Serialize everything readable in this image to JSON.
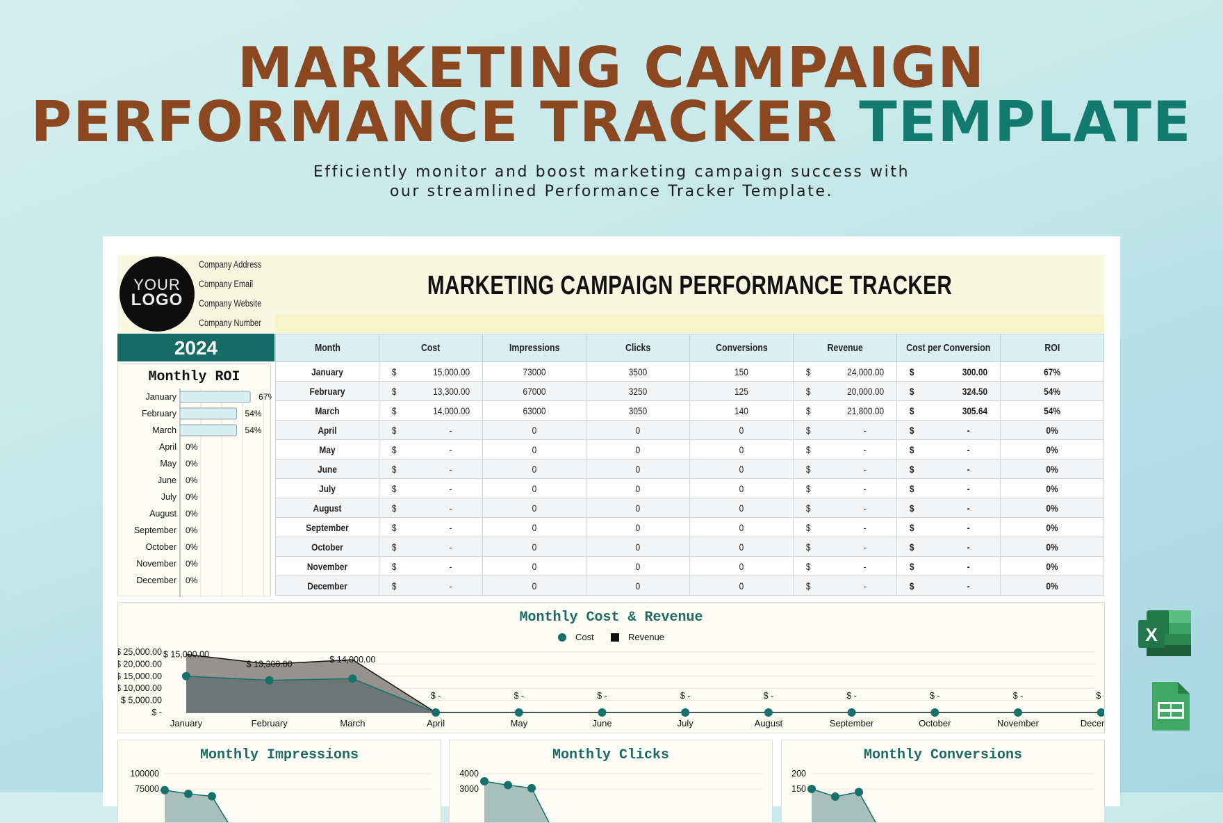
{
  "hero": {
    "title_line1": "MARKETING CAMPAIGN",
    "title_line2": "PERFORMANCE TRACKER",
    "title_accent": "TEMPLATE",
    "subtitle_line1": "Efficiently monitor and boost marketing campaign success with",
    "subtitle_line2": "our streamlined Performance Tracker Template."
  },
  "colors": {
    "title_brown": "#8a4720",
    "accent_teal": "#137a6e",
    "year_bar": "#176b65",
    "header_yellow": "#f8f8e2",
    "table_header": "#dbeef1"
  },
  "company": {
    "logo_line1": "YOUR",
    "logo_line2": "LOGO",
    "address": "Company Address",
    "email": "Company Email",
    "website": "Company Website",
    "number": "Company Number"
  },
  "sheet": {
    "title": "MARKETING CAMPAIGN PERFORMANCE TRACKER",
    "year": "2024"
  },
  "table": {
    "columns": [
      "Month",
      "Cost",
      "Impressions",
      "Clicks",
      "Conversions",
      "Revenue",
      "Cost per Conversion",
      "ROI"
    ],
    "currency": "$",
    "rows": [
      {
        "month": "January",
        "cost": "15,000.00",
        "impressions": "73000",
        "clicks": "3500",
        "conversions": "150",
        "revenue": "24,000.00",
        "cpc": "300.00",
        "roi": "67%"
      },
      {
        "month": "February",
        "cost": "13,300.00",
        "impressions": "67000",
        "clicks": "3250",
        "conversions": "125",
        "revenue": "20,000.00",
        "cpc": "324.50",
        "roi": "54%"
      },
      {
        "month": "March",
        "cost": "14,000.00",
        "impressions": "63000",
        "clicks": "3050",
        "conversions": "140",
        "revenue": "21,800.00",
        "cpc": "305.64",
        "roi": "54%"
      },
      {
        "month": "April",
        "cost": "-",
        "impressions": "0",
        "clicks": "0",
        "conversions": "0",
        "revenue": "-",
        "cpc": "-",
        "roi": "0%"
      },
      {
        "month": "May",
        "cost": "-",
        "impressions": "0",
        "clicks": "0",
        "conversions": "0",
        "revenue": "-",
        "cpc": "-",
        "roi": "0%"
      },
      {
        "month": "June",
        "cost": "-",
        "impressions": "0",
        "clicks": "0",
        "conversions": "0",
        "revenue": "-",
        "cpc": "-",
        "roi": "0%"
      },
      {
        "month": "July",
        "cost": "-",
        "impressions": "0",
        "clicks": "0",
        "conversions": "0",
        "revenue": "-",
        "cpc": "-",
        "roi": "0%"
      },
      {
        "month": "August",
        "cost": "-",
        "impressions": "0",
        "clicks": "0",
        "conversions": "0",
        "revenue": "-",
        "cpc": "-",
        "roi": "0%"
      },
      {
        "month": "September",
        "cost": "-",
        "impressions": "0",
        "clicks": "0",
        "conversions": "0",
        "revenue": "-",
        "cpc": "-",
        "roi": "0%"
      },
      {
        "month": "October",
        "cost": "-",
        "impressions": "0",
        "clicks": "0",
        "conversions": "0",
        "revenue": "-",
        "cpc": "-",
        "roi": "0%"
      },
      {
        "month": "November",
        "cost": "-",
        "impressions": "0",
        "clicks": "0",
        "conversions": "0",
        "revenue": "-",
        "cpc": "-",
        "roi": "0%"
      },
      {
        "month": "December",
        "cost": "-",
        "impressions": "0",
        "clicks": "0",
        "conversions": "0",
        "revenue": "-",
        "cpc": "-",
        "roi": "0%"
      }
    ]
  },
  "chart_data": [
    {
      "type": "bar",
      "orientation": "horizontal",
      "title": "Monthly ROI",
      "categories": [
        "January",
        "February",
        "March",
        "April",
        "May",
        "June",
        "July",
        "August",
        "September",
        "October",
        "November",
        "December"
      ],
      "values": [
        67,
        54,
        54,
        0,
        0,
        0,
        0,
        0,
        0,
        0,
        0,
        0
      ],
      "data_labels": [
        "67%",
        "54%",
        "54%",
        "0%",
        "0%",
        "0%",
        "0%",
        "0%",
        "0%",
        "0%",
        "0%",
        "0%"
      ],
      "xlim": [
        0,
        100
      ],
      "grid": true,
      "bar_color": "#d9eef2"
    },
    {
      "type": "area",
      "title": "Monthly Cost & Revenue",
      "legend": "top",
      "categories": [
        "January",
        "February",
        "March",
        "April",
        "May",
        "June",
        "July",
        "August",
        "September",
        "October",
        "November",
        "December"
      ],
      "series": [
        {
          "name": "Cost",
          "values": [
            15000,
            13300,
            14000,
            0,
            0,
            0,
            0,
            0,
            0,
            0,
            0,
            0
          ],
          "color": "#17706a"
        },
        {
          "name": "Revenue",
          "values": [
            24000,
            20000,
            21800,
            0,
            0,
            0,
            0,
            0,
            0,
            0,
            0,
            0
          ],
          "color": "#111111"
        }
      ],
      "data_labels": [
        "$ 15,000.00",
        "$ 13,300.00",
        "$ 14,000.00",
        "$ -",
        "$ -",
        "$ -",
        "$ -",
        "$ -",
        "$ -",
        "$ -",
        "$ -",
        "$ -"
      ],
      "yticks": [
        "$ -",
        "$ 5,000.00",
        "$ 10,000.00",
        "$ 15,000.00",
        "$ 20,000.00",
        "$ 25,000.00"
      ],
      "ylim": [
        0,
        25000
      ],
      "grid": true
    },
    {
      "type": "area",
      "title": "Monthly Impressions",
      "values": [
        73000,
        67000,
        63000,
        0,
        0,
        0,
        0,
        0,
        0,
        0,
        0,
        0
      ],
      "yticks": [
        "100000",
        "75000"
      ],
      "ylim": [
        0,
        100000
      ],
      "grid": true
    },
    {
      "type": "area",
      "title": "Monthly Clicks",
      "values": [
        3500,
        3250,
        3050,
        0,
        0,
        0,
        0,
        0,
        0,
        0,
        0,
        0
      ],
      "yticks": [
        "4000",
        "3000"
      ],
      "ylim": [
        0,
        4000
      ],
      "grid": true
    },
    {
      "type": "area",
      "title": "Monthly Conversions",
      "values": [
        150,
        125,
        140,
        0,
        0,
        0,
        0,
        0,
        0,
        0,
        0,
        0
      ],
      "yticks": [
        "200",
        "150"
      ],
      "ylim": [
        0,
        200
      ],
      "grid": true
    }
  ],
  "apps": {
    "excel_letter": "X"
  }
}
